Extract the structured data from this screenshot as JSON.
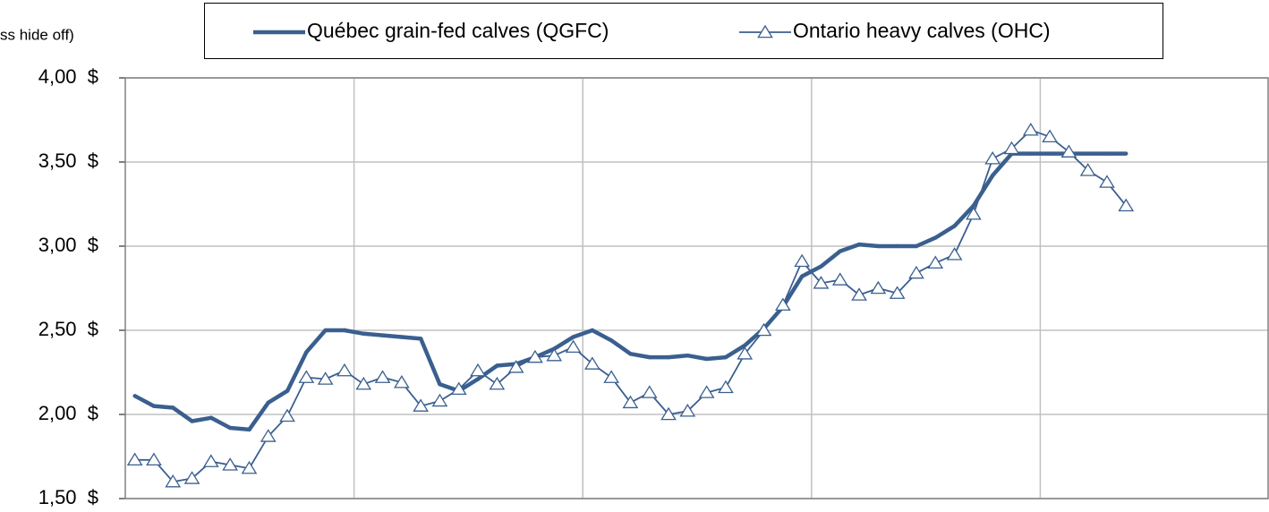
{
  "chart_data": {
    "type": "line",
    "y_label": "ss hide off)",
    "categories": [
      null,
      null,
      null,
      null,
      null,
      null,
      null,
      null,
      null,
      null,
      null,
      null,
      null,
      null,
      null,
      null,
      null,
      null,
      null,
      null,
      null,
      null,
      null,
      null,
      null,
      null,
      null,
      null,
      null,
      null,
      null,
      null,
      null,
      null,
      null,
      null,
      null,
      null,
      null,
      null,
      null,
      null,
      null,
      null,
      null,
      null,
      null,
      null,
      null,
      null,
      null,
      null,
      null
    ],
    "series": [
      {
        "name": "Québec grain-fed calves (QGFC)",
        "color": "#3a5f8f",
        "marker": "none",
        "values": [
          2.11,
          2.05,
          2.04,
          1.96,
          1.98,
          1.92,
          1.91,
          2.07,
          2.14,
          2.37,
          2.5,
          2.5,
          2.48,
          2.47,
          2.46,
          2.45,
          2.18,
          2.14,
          2.21,
          2.29,
          2.3,
          2.34,
          2.39,
          2.46,
          2.5,
          2.44,
          2.36,
          2.34,
          2.34,
          2.35,
          2.33,
          2.34,
          2.41,
          2.51,
          2.64,
          2.82,
          2.88,
          2.97,
          3.01,
          3.0,
          3.0,
          3.0,
          3.05,
          3.12,
          3.24,
          3.42,
          3.55,
          3.55,
          3.55,
          3.55,
          3.55,
          3.55,
          3.55
        ]
      },
      {
        "name": "Ontario heavy calves (OHC)",
        "color": "#3a5f8f",
        "marker": "triangle",
        "values": [
          1.73,
          1.73,
          1.6,
          1.62,
          1.72,
          1.7,
          1.68,
          1.87,
          1.99,
          2.22,
          2.21,
          2.26,
          2.18,
          2.22,
          2.19,
          2.05,
          2.08,
          2.15,
          2.26,
          2.18,
          2.28,
          2.34,
          2.35,
          2.4,
          2.3,
          2.22,
          2.07,
          2.13,
          2.0,
          2.02,
          2.13,
          2.16,
          2.36,
          2.5,
          2.65,
          2.91,
          2.78,
          2.8,
          2.71,
          2.75,
          2.72,
          2.84,
          2.9,
          2.95,
          3.19,
          3.52,
          3.58,
          3.69,
          3.65,
          3.56,
          3.45,
          3.38,
          3.24
        ]
      }
    ],
    "ylim": [
      1.5,
      4.0
    ],
    "yticks": [
      {
        "value": 1.5,
        "label": "1,50  $"
      },
      {
        "value": 2.0,
        "label": "2,00  $"
      },
      {
        "value": 2.5,
        "label": "2,50  $"
      },
      {
        "value": 3.0,
        "label": "3,00  $"
      },
      {
        "value": 3.5,
        "label": "3,50  $"
      },
      {
        "value": 4.0,
        "label": "4,00  $"
      }
    ],
    "grid": true,
    "legend": "top"
  }
}
